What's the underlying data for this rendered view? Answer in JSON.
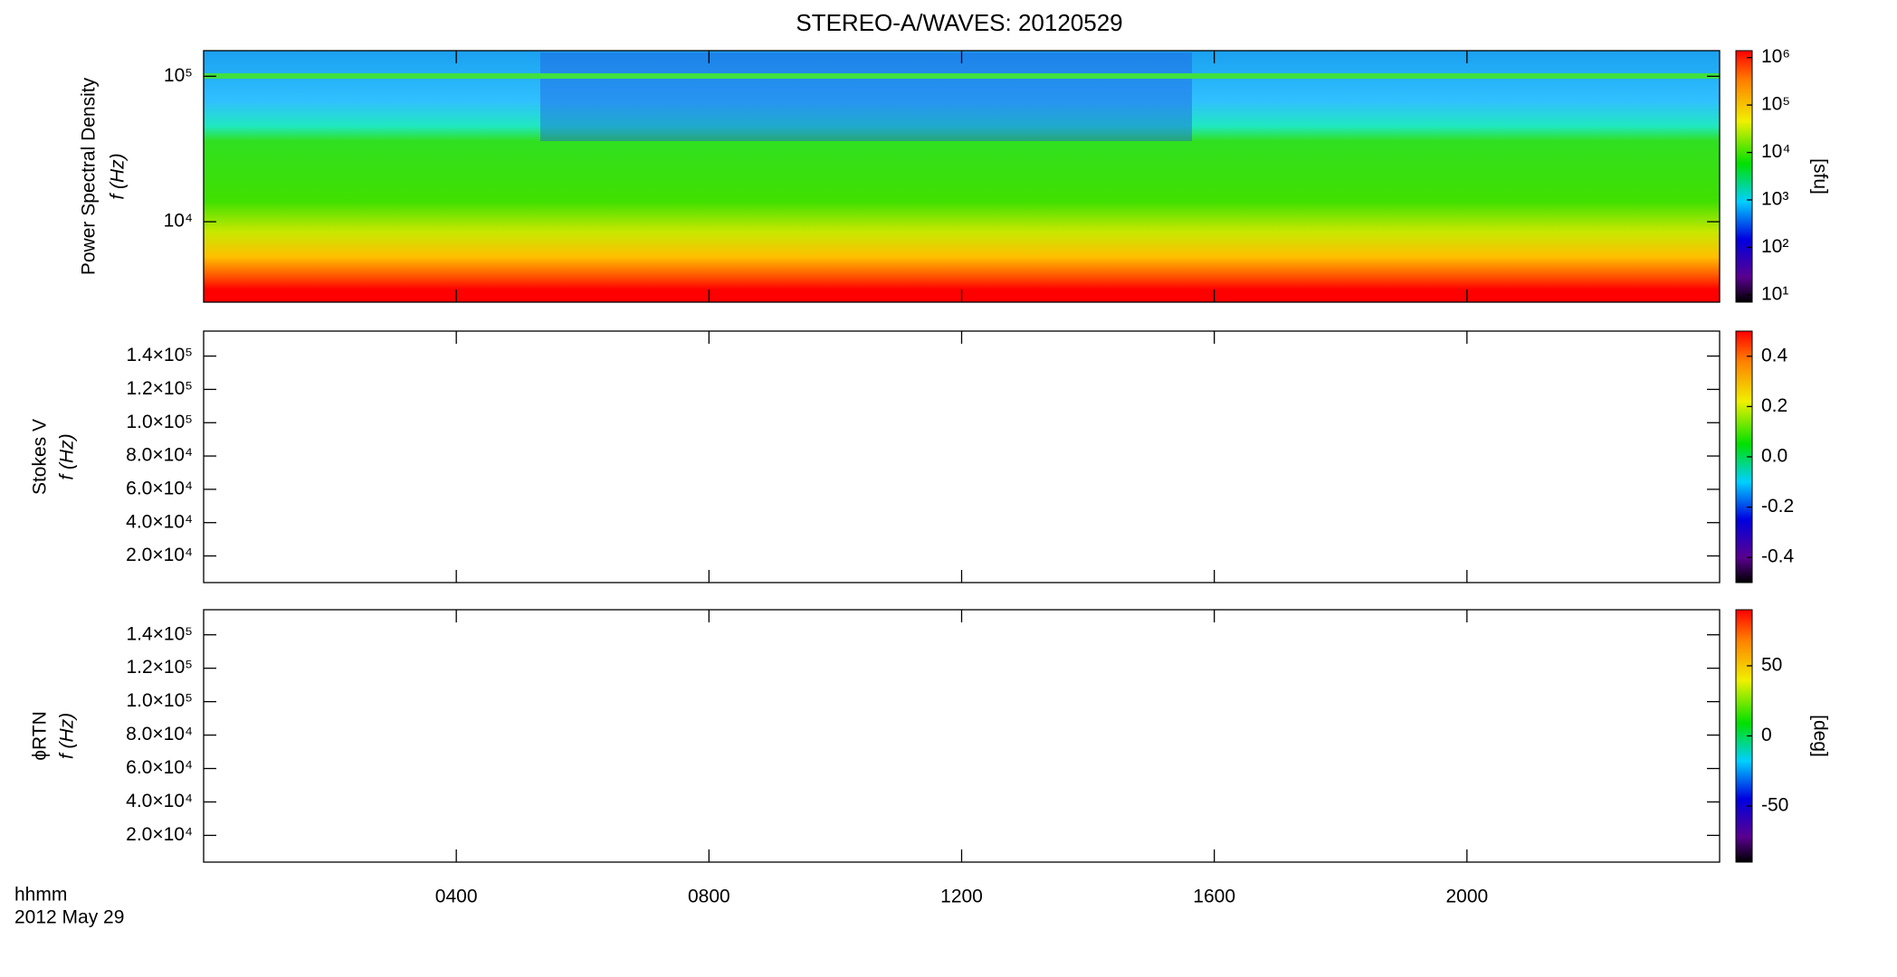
{
  "title": "STEREO-A/WAVES: 20120529",
  "x_axis": {
    "label": "hhmm",
    "date": "2012 May 29",
    "xlim": [
      0,
      24
    ],
    "xticks": [
      {
        "value": 4,
        "label": "0400"
      },
      {
        "value": 8,
        "label": "0800"
      },
      {
        "value": 12,
        "label": "1200"
      },
      {
        "value": 16,
        "label": "1600"
      },
      {
        "value": 20,
        "label": "2000"
      }
    ]
  },
  "chart_data": [
    {
      "type": "heatmap",
      "ylabel": [
        "Power Spectral Density",
        "f (Hz)"
      ],
      "log_y": true,
      "ylim": [
        2800,
        150000
      ],
      "yticks": [
        {
          "value": 10000,
          "label": "10⁴"
        },
        {
          "value": 100000,
          "label": "10⁵"
        }
      ],
      "colorbar": {
        "label": "[sfu]",
        "log": true,
        "lim": [
          7,
          1400000
        ],
        "ticks": [
          {
            "value": 10,
            "label": "10¹"
          },
          {
            "value": 100,
            "label": "10²"
          },
          {
            "value": 1000,
            "label": "10³"
          },
          {
            "value": 10000,
            "label": "10⁴"
          },
          {
            "value": 100000,
            "label": "10⁵"
          },
          {
            "value": 1000000,
            "label": "10⁶"
          }
        ]
      }
    },
    {
      "type": "heatmap",
      "ylabel": [
        "Stokes V",
        "f (Hz)"
      ],
      "log_y": false,
      "ylim": [
        4000,
        155000
      ],
      "yticks": [
        {
          "value": 20000,
          "label": "2.0×10⁴"
        },
        {
          "value": 40000,
          "label": "4.0×10⁴"
        },
        {
          "value": 60000,
          "label": "6.0×10⁴"
        },
        {
          "value": 80000,
          "label": "8.0×10⁴"
        },
        {
          "value": 100000,
          "label": "1.0×10⁵"
        },
        {
          "value": 120000,
          "label": "1.2×10⁵"
        },
        {
          "value": 140000,
          "label": "1.4×10⁵"
        }
      ],
      "colorbar": {
        "log": false,
        "lim": [
          -0.5,
          0.5
        ],
        "ticks": [
          {
            "value": -0.4,
            "label": "-0.4"
          },
          {
            "value": -0.2,
            "label": "-0.2"
          },
          {
            "value": 0,
            "label": "0.0"
          },
          {
            "value": 0.2,
            "label": "0.2"
          },
          {
            "value": 0.4,
            "label": "0.4"
          }
        ]
      }
    },
    {
      "type": "heatmap",
      "ylabel": [
        "ϕRTN",
        "f (Hz)"
      ],
      "log_y": false,
      "ylim": [
        4000,
        155000
      ],
      "yticks": [
        {
          "value": 20000,
          "label": "2.0×10⁴"
        },
        {
          "value": 40000,
          "label": "4.0×10⁴"
        },
        {
          "value": 60000,
          "label": "6.0×10⁴"
        },
        {
          "value": 80000,
          "label": "8.0×10⁴"
        },
        {
          "value": 100000,
          "label": "1.0×10⁵"
        },
        {
          "value": 120000,
          "label": "1.2×10⁵"
        },
        {
          "value": 140000,
          "label": "1.4×10⁵"
        }
      ],
      "colorbar": {
        "label": "[deg]",
        "log": false,
        "lim": [
          -90,
          90
        ],
        "ticks": [
          -50,
          0,
          50
        ]
      }
    }
  ]
}
